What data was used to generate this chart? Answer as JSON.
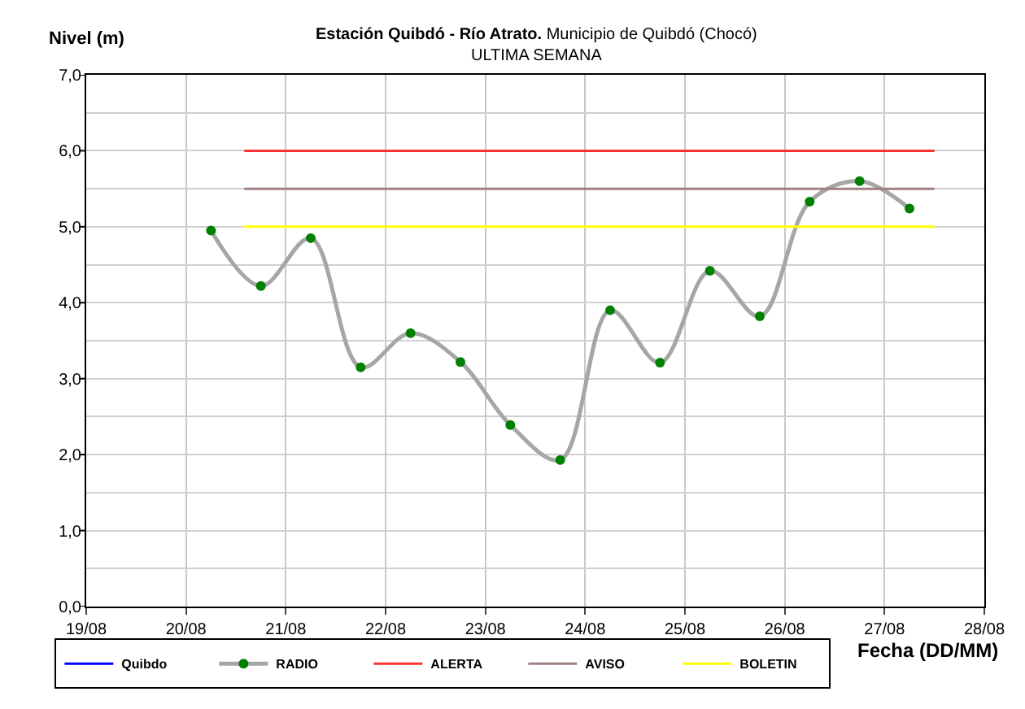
{
  "chart_data": {
    "type": "line",
    "title": "Estación Quibdó - Río Atrato.",
    "subtitle": "Municipio de Quibdó (Chocó)\nULTIMA SEMANA",
    "xlabel": "Fecha (DD/MM)",
    "ylabel": "Nivel (m)",
    "xlim": [
      "--08-19",
      "--08-28"
    ],
    "xticks": [
      {
        "value": "--08-19",
        "label": "19/08"
      },
      {
        "value": "--08-20",
        "label": "20/08"
      },
      {
        "value": "--08-21",
        "label": "21/08"
      },
      {
        "value": "--08-22",
        "label": "22/08"
      },
      {
        "value": "--08-23",
        "label": "23/08"
      },
      {
        "value": "--08-24",
        "label": "24/08"
      },
      {
        "value": "--08-25",
        "label": "25/08"
      },
      {
        "value": "--08-26",
        "label": "26/08"
      },
      {
        "value": "--08-27",
        "label": "27/08"
      },
      {
        "value": "--08-28",
        "label": "28/08"
      }
    ],
    "ylim": [
      0,
      7
    ],
    "yticks": [
      {
        "value": 0,
        "label": "0,0"
      },
      {
        "value": 0.5,
        "label": null
      },
      {
        "value": 1,
        "label": "1,0"
      },
      {
        "value": 1.5,
        "label": null
      },
      {
        "value": 2,
        "label": "2,0"
      },
      {
        "value": 2.5,
        "label": null
      },
      {
        "value": 3,
        "label": "3,0"
      },
      {
        "value": 3.5,
        "label": null
      },
      {
        "value": 4,
        "label": "4,0"
      },
      {
        "value": 4.5,
        "label": null
      },
      {
        "value": 5,
        "label": "5,0"
      },
      {
        "value": 5.5,
        "label": null
      },
      {
        "value": 6,
        "label": "6,0"
      },
      {
        "value": 6.5,
        "label": null
      },
      {
        "value": 7,
        "label": "7,0"
      }
    ],
    "grid": true,
    "legend": "bottom",
    "series": [
      {
        "name": "Quibdo",
        "color": "#0000ff",
        "marker": "none"
      },
      {
        "name": "RADIO",
        "color": "#008000",
        "marker": "circle",
        "x": [
          "--08-20T06:00",
          "--08-20T18:00",
          "--08-21T06:00",
          "--08-21T18:00",
          "--08-22T06:00",
          "--08-22T18:00",
          "--08-23T06:00",
          "--08-23T18:00",
          "--08-24T06:00",
          "--08-24T18:00",
          "--08-25T06:00",
          "--08-25T18:00",
          "--08-26T06:00",
          "--08-26T18:00",
          "--08-27T06:00"
        ],
        "values": [
          4.95,
          4.22,
          4.85,
          3.15,
          3.6,
          3.22,
          2.39,
          1.93,
          3.9,
          3.21,
          4.42,
          3.82,
          5.33,
          5.6,
          5.24
        ]
      },
      {
        "name": "ALERTA",
        "color": "#ff3333",
        "marker": "none",
        "x": [
          "--08-20T14:00",
          "--08-27T12:00"
        ],
        "values": [
          6.0,
          6.0
        ]
      },
      {
        "name": "AVISO",
        "color": "#a08080",
        "marker": "none",
        "x": [
          "--08-20T14:00",
          "--08-27T12:00"
        ],
        "values": [
          5.5,
          5.5
        ]
      },
      {
        "name": "BOLETIN",
        "color": "#ffff00",
        "marker": "none",
        "x": [
          "--08-20T14:00",
          "--08-27T12:00"
        ],
        "values": [
          5.0,
          5.0
        ]
      }
    ]
  }
}
